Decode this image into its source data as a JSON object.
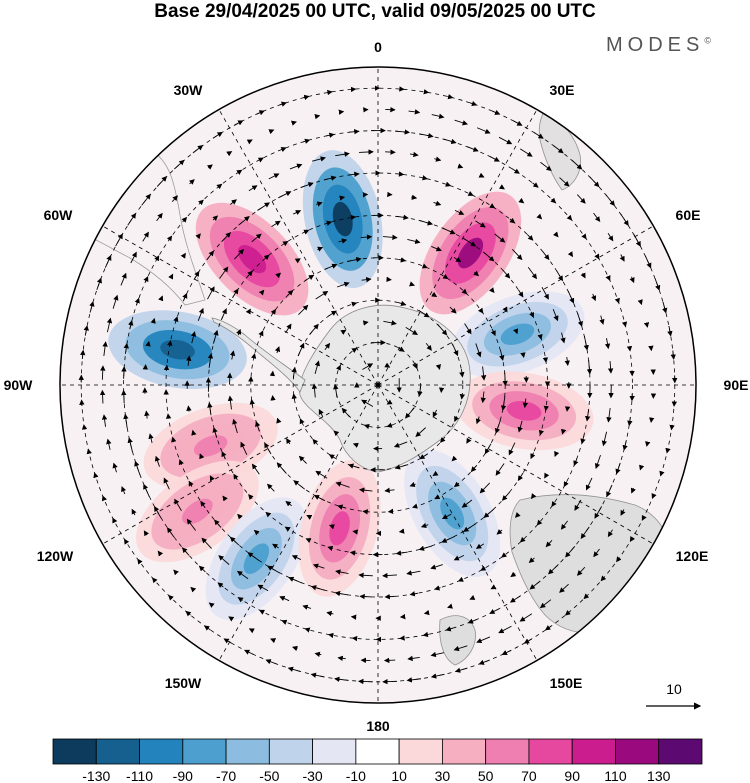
{
  "title": "Base 29/04/2025 00 UTC, valid 09/05/2025 00 UTC",
  "brand": "MODES",
  "brand_mark": "©",
  "longitude_labels": {
    "n": "0",
    "e30": "30E",
    "e60": "60E",
    "e90": "90E",
    "e120": "120E",
    "e150": "150E",
    "s": "180",
    "w150": "150W",
    "w120": "120W",
    "w90": "90W",
    "w60": "60W",
    "w30": "30W"
  },
  "reference_vector_label": "10",
  "colorbar": {
    "colors": [
      "#0c3b5e",
      "#15608f",
      "#2384bd",
      "#4c9fcf",
      "#8cbde0",
      "#bfd3ea",
      "#e4e6f3",
      "#ffffff",
      "#fbd9da",
      "#f6aec1",
      "#ef7fb0",
      "#e6479f",
      "#cc1d8f",
      "#9a0a7e",
      "#5c0a72"
    ],
    "tick_labels": [
      "-130",
      "-110",
      "-90",
      "-70",
      "-50",
      "-30",
      "-10",
      "10",
      "30",
      "50",
      "70",
      "90",
      "110",
      "130"
    ]
  },
  "anomaly_centers": [
    {
      "name": "neg-1",
      "lon_deg": -12,
      "lat_deg": -50,
      "sign": "negative",
      "max_abs": 130
    },
    {
      "name": "pos-1",
      "lon_deg": 35,
      "lat_deg": -52,
      "sign": "positive",
      "max_abs": 100
    },
    {
      "name": "pos-2",
      "lon_deg": -45,
      "lat_deg": -48,
      "sign": "positive",
      "max_abs": 95
    },
    {
      "name": "neg-2",
      "lon_deg": -80,
      "lat_deg": -42,
      "sign": "negative",
      "max_abs": 110
    },
    {
      "name": "neg-3",
      "lon_deg": 70,
      "lat_deg": -55,
      "sign": "negative",
      "max_abs": 60
    },
    {
      "name": "pos-3",
      "lon_deg": 100,
      "lat_deg": -55,
      "sign": "positive",
      "max_abs": 70
    },
    {
      "name": "pos-4",
      "lon_deg": -110,
      "lat_deg": -48,
      "sign": "positive",
      "max_abs": 50
    },
    {
      "name": "pos-5",
      "lon_deg": -125,
      "lat_deg": -38,
      "sign": "positive",
      "max_abs": 50
    },
    {
      "name": "neg-4",
      "lon_deg": -145,
      "lat_deg": -40,
      "sign": "negative",
      "max_abs": 60
    },
    {
      "name": "pos-6",
      "lon_deg": -165,
      "lat_deg": -55,
      "sign": "positive",
      "max_abs": 70
    },
    {
      "name": "neg-5",
      "lon_deg": 150,
      "lat_deg": -55,
      "sign": "negative",
      "max_abs": 60
    }
  ]
}
